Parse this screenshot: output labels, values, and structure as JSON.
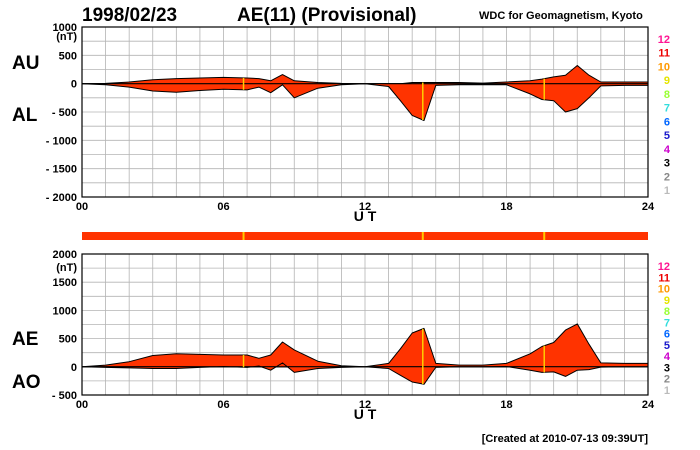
{
  "header": {
    "date": "1998/02/23",
    "title": "AE(11) (Provisional)",
    "source": "WDC for Geomagnetism, Kyoto"
  },
  "footer": {
    "created": "[Created at 2010-07-13 09:39UT]"
  },
  "colors": {
    "fill": "#ff3300",
    "outline": "#000000",
    "marker": "#ffcc00",
    "grid": "#b4b4b4"
  },
  "level_legend": [
    {
      "label": "12",
      "color": "#ff1493"
    },
    {
      "label": "11",
      "color": "#ee0000"
    },
    {
      "label": "10",
      "color": "#ff9900"
    },
    {
      "label": "9",
      "color": "#e5e500"
    },
    {
      "label": "8",
      "color": "#99ff33"
    },
    {
      "label": "7",
      "color": "#33dddd"
    },
    {
      "label": "6",
      "color": "#0066ff"
    },
    {
      "label": "5",
      "color": "#1a1acc"
    },
    {
      "label": "4",
      "color": "#cc00cc"
    },
    {
      "label": "3",
      "color": "#000000"
    },
    {
      "label": "2",
      "color": "#888888"
    },
    {
      "label": "1",
      "color": "#bbbbbb"
    }
  ],
  "station_bar": {
    "color": "#ff3300",
    "marker_color": "#ffcc00",
    "markers": [
      6.85,
      14.45,
      19.6
    ]
  },
  "chart_data": [
    {
      "type": "area",
      "series_labels": [
        "AU",
        "AL"
      ],
      "xlabel": "U T",
      "ylabel": "(nT)",
      "xlim": [
        0,
        24
      ],
      "ylim": [
        -2000,
        1000
      ],
      "x_ticks": [
        "00",
        "06",
        "12",
        "18",
        "24"
      ],
      "y_ticks": [
        "1000",
        "500",
        "0",
        "- 500",
        "- 1000",
        "- 1500",
        "- 2000"
      ],
      "grid": true,
      "x": [
        0,
        1,
        2,
        3,
        4,
        5,
        6,
        7,
        7.5,
        8,
        8.5,
        9,
        10,
        11,
        12,
        13,
        13.5,
        14,
        14.5,
        15,
        16,
        17,
        18,
        19,
        19.5,
        20,
        20.5,
        21,
        21.5,
        22,
        23,
        24
      ],
      "series": [
        {
          "values": [
            0,
            5,
            30,
            70,
            90,
            100,
            110,
            100,
            90,
            50,
            160,
            50,
            20,
            5,
            0,
            0,
            0,
            20,
            20,
            20,
            20,
            10,
            30,
            50,
            80,
            120,
            150,
            320,
            150,
            30,
            30,
            30
          ]
        },
        {
          "values": [
            0,
            -20,
            -60,
            -130,
            -150,
            -120,
            -100,
            -110,
            -60,
            -160,
            -20,
            -250,
            -80,
            -20,
            0,
            -50,
            -300,
            -560,
            -650,
            -30,
            -20,
            -20,
            -20,
            -180,
            -280,
            -300,
            -500,
            -440,
            -250,
            -40,
            -30,
            -30
          ]
        }
      ],
      "level_markers": [
        6.85,
        14.45,
        19.6
      ]
    },
    {
      "type": "area",
      "series_labels": [
        "AE",
        "AO"
      ],
      "xlabel": "U T",
      "ylabel": "(nT)",
      "xlim": [
        0,
        24
      ],
      "ylim": [
        -500,
        2000
      ],
      "x_ticks": [
        "00",
        "06",
        "12",
        "18",
        "24"
      ],
      "y_ticks": [
        "2000",
        "1500",
        "1000",
        "500",
        "0",
        "- 500"
      ],
      "grid": true,
      "x": [
        0,
        1,
        2,
        3,
        4,
        5,
        6,
        7,
        7.5,
        8,
        8.5,
        9,
        10,
        11,
        12,
        13,
        13.5,
        14,
        14.5,
        15,
        16,
        17,
        18,
        19,
        19.5,
        20,
        20.5,
        21,
        21.5,
        22,
        23,
        24
      ],
      "series": [
        {
          "values": [
            0,
            30,
            90,
            200,
            230,
            220,
            210,
            210,
            150,
            210,
            440,
            300,
            100,
            20,
            0,
            60,
            320,
            600,
            680,
            60,
            30,
            30,
            60,
            230,
            360,
            430,
            650,
            760,
            400,
            70,
            60,
            60
          ]
        },
        {
          "values": [
            0,
            -10,
            -20,
            -30,
            -30,
            -10,
            5,
            -10,
            15,
            -60,
            70,
            -100,
            -30,
            -10,
            0,
            -30,
            -150,
            -270,
            -310,
            -10,
            0,
            0,
            5,
            -60,
            -100,
            -90,
            -170,
            -60,
            -50,
            -5,
            0,
            0
          ]
        }
      ],
      "level_markers": [
        6.85,
        14.45,
        19.6
      ]
    }
  ]
}
